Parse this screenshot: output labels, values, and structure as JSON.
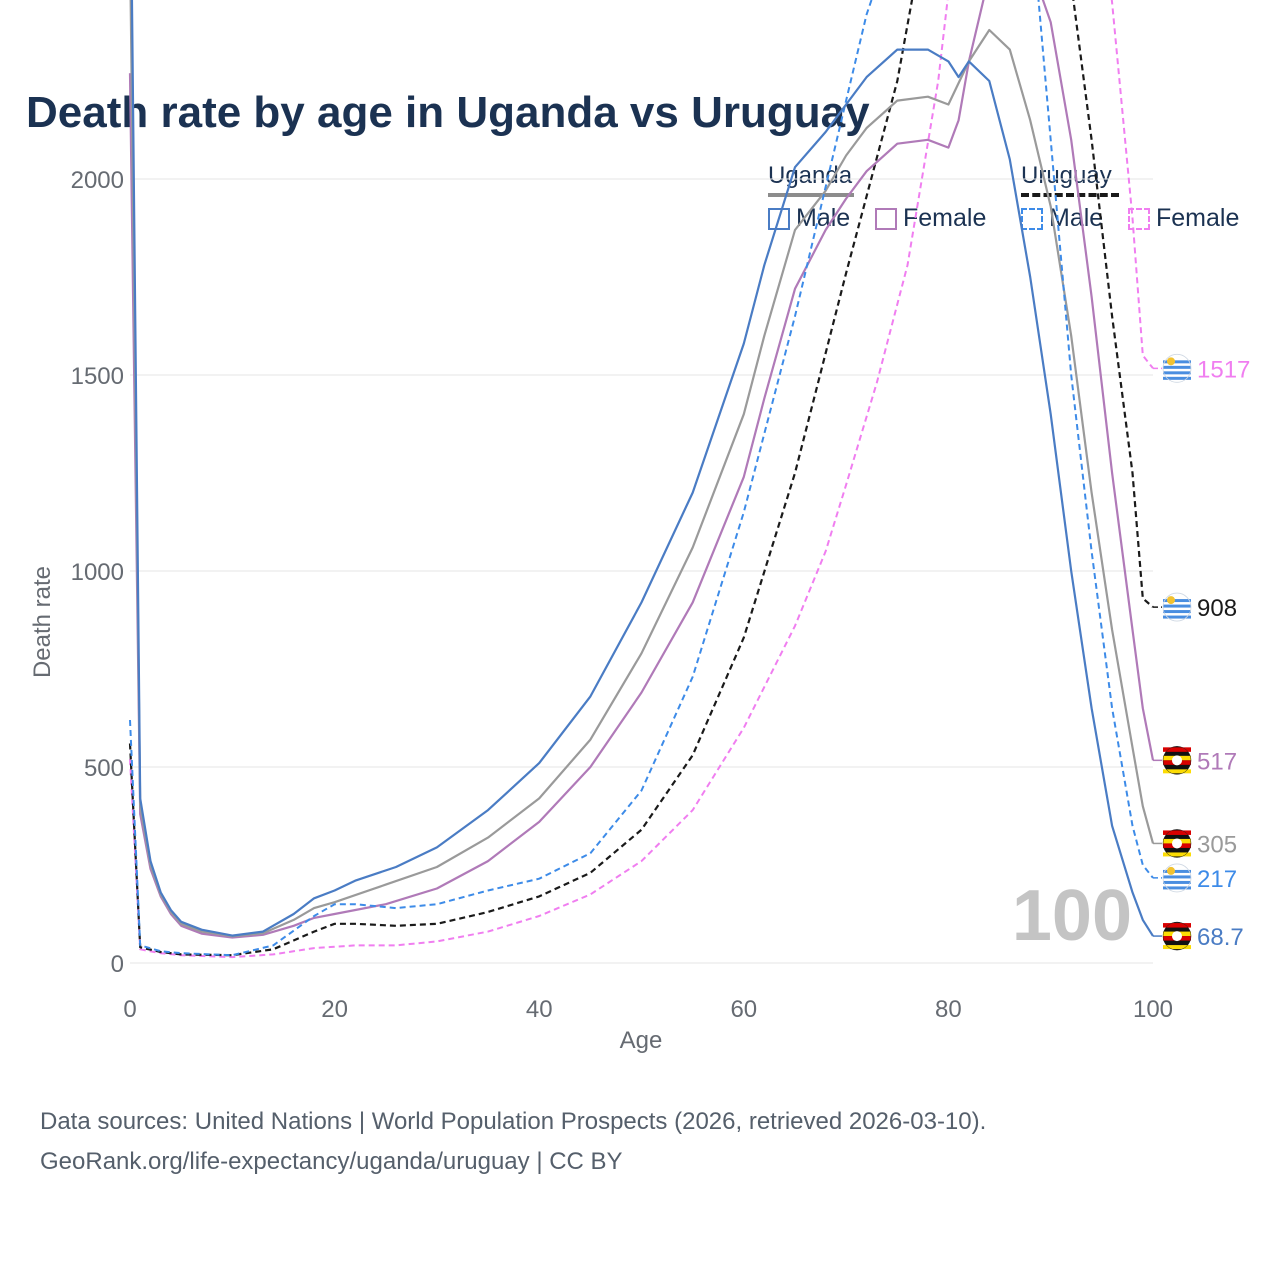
{
  "title": "Death rate by age in Uganda vs Uruguay",
  "legend": {
    "groups": [
      {
        "name": "Uganda",
        "color": "#8c8c8c",
        "dashed": false
      },
      {
        "name": "Uruguay",
        "color": "#1a1a1a",
        "dashed": true
      }
    ],
    "items": [
      {
        "label": "Male",
        "color": "#4a7cc4",
        "dashed": false
      },
      {
        "label": "Female",
        "color": "#b07ab8",
        "dashed": false
      },
      {
        "label": "Male",
        "color": "#3d8be8",
        "dashed": true
      },
      {
        "label": "Female",
        "color": "#f07ef0",
        "dashed": true
      }
    ]
  },
  "footer": {
    "line1": "Data sources: United Nations | World Population Prospects (2026, retrieved 2026-03-10).",
    "line2": "GeoRank.org/life-expectancy/uganda/uruguay | CC BY"
  },
  "watermark": "100",
  "chart_data": {
    "type": "line",
    "title": "Death rate by age in Uganda vs Uruguay",
    "xlabel": "Age",
    "ylabel": "Death rate",
    "xlim": [
      0,
      100
    ],
    "ylim": [
      0,
      3300
    ],
    "xticks": [
      0,
      20,
      40,
      60,
      80,
      100
    ],
    "yticks": [
      0,
      500,
      1000,
      1500,
      2000,
      2500,
      3000
    ],
    "series": [
      {
        "name": "Uruguay Female",
        "country": "Uruguay",
        "sex": "Female",
        "color": "#f07ef0",
        "dashed": true,
        "width": 2,
        "end_label": "1517",
        "points": [
          [
            0,
            520
          ],
          [
            1,
            35
          ],
          [
            3,
            25
          ],
          [
            5,
            20
          ],
          [
            10,
            15
          ],
          [
            14,
            22
          ],
          [
            18,
            38
          ],
          [
            22,
            45
          ],
          [
            26,
            45
          ],
          [
            30,
            55
          ],
          [
            35,
            80
          ],
          [
            40,
            120
          ],
          [
            45,
            175
          ],
          [
            50,
            260
          ],
          [
            55,
            390
          ],
          [
            60,
            600
          ],
          [
            65,
            860
          ],
          [
            68,
            1050
          ],
          [
            70,
            1220
          ],
          [
            73,
            1480
          ],
          [
            76,
            1780
          ],
          [
            79,
            2250
          ],
          [
            81,
            2700
          ],
          [
            83,
            3100
          ],
          [
            85,
            3300
          ],
          [
            87,
            3340
          ],
          [
            90,
            3330
          ],
          [
            92,
            3200
          ],
          [
            94,
            2900
          ],
          [
            96,
            2450
          ],
          [
            98,
            1900
          ],
          [
            99,
            1550
          ],
          [
            100,
            1517
          ]
        ]
      },
      {
        "name": "Uruguay Total",
        "country": "Uruguay",
        "sex": "Total",
        "color": "#1a1a1a",
        "dashed": true,
        "width": 2.2,
        "end_label": "908",
        "points": [
          [
            0,
            560
          ],
          [
            1,
            40
          ],
          [
            3,
            28
          ],
          [
            5,
            22
          ],
          [
            10,
            20
          ],
          [
            14,
            35
          ],
          [
            18,
            80
          ],
          [
            20,
            100
          ],
          [
            22,
            100
          ],
          [
            26,
            95
          ],
          [
            30,
            100
          ],
          [
            35,
            130
          ],
          [
            40,
            170
          ],
          [
            45,
            230
          ],
          [
            50,
            340
          ],
          [
            55,
            530
          ],
          [
            60,
            830
          ],
          [
            65,
            1250
          ],
          [
            70,
            1760
          ],
          [
            75,
            2250
          ],
          [
            78,
            2680
          ],
          [
            80,
            3020
          ],
          [
            82,
            3220
          ],
          [
            84,
            3260
          ],
          [
            86,
            3200
          ],
          [
            88,
            3020
          ],
          [
            90,
            2800
          ],
          [
            92,
            2500
          ],
          [
            94,
            2100
          ],
          [
            96,
            1650
          ],
          [
            98,
            1250
          ],
          [
            99,
            930
          ],
          [
            100,
            908
          ]
        ]
      },
      {
        "name": "Uganda Female",
        "country": "Uganda",
        "sex": "Female",
        "color": "#b07ab8",
        "dashed": false,
        "width": 2.2,
        "end_label": "517",
        "points": [
          [
            0,
            2270
          ],
          [
            1,
            380
          ],
          [
            2,
            240
          ],
          [
            3,
            170
          ],
          [
            4,
            125
          ],
          [
            5,
            95
          ],
          [
            7,
            75
          ],
          [
            10,
            65
          ],
          [
            13,
            72
          ],
          [
            16,
            95
          ],
          [
            18,
            115
          ],
          [
            20,
            125
          ],
          [
            25,
            150
          ],
          [
            30,
            190
          ],
          [
            35,
            260
          ],
          [
            40,
            360
          ],
          [
            45,
            500
          ],
          [
            50,
            690
          ],
          [
            55,
            920
          ],
          [
            60,
            1240
          ],
          [
            62,
            1440
          ],
          [
            65,
            1720
          ],
          [
            68,
            1870
          ],
          [
            70,
            1950
          ],
          [
            72,
            2020
          ],
          [
            75,
            2090
          ],
          [
            78,
            2100
          ],
          [
            80,
            2080
          ],
          [
            81,
            2150
          ],
          [
            82,
            2300
          ],
          [
            84,
            2520
          ],
          [
            86,
            2590
          ],
          [
            88,
            2550
          ],
          [
            90,
            2400
          ],
          [
            92,
            2100
          ],
          [
            94,
            1700
          ],
          [
            96,
            1250
          ],
          [
            98,
            850
          ],
          [
            99,
            650
          ],
          [
            100,
            517
          ]
        ]
      },
      {
        "name": "Uganda Total",
        "country": "Uganda",
        "sex": "Total",
        "color": "#9a9a9a",
        "dashed": false,
        "width": 2.2,
        "end_label": "305",
        "points": [
          [
            0,
            2600
          ],
          [
            1,
            400
          ],
          [
            2,
            250
          ],
          [
            3,
            175
          ],
          [
            4,
            130
          ],
          [
            5,
            100
          ],
          [
            7,
            80
          ],
          [
            10,
            68
          ],
          [
            13,
            76
          ],
          [
            16,
            110
          ],
          [
            18,
            140
          ],
          [
            20,
            155
          ],
          [
            25,
            200
          ],
          [
            30,
            245
          ],
          [
            35,
            320
          ],
          [
            40,
            420
          ],
          [
            45,
            570
          ],
          [
            50,
            790
          ],
          [
            55,
            1060
          ],
          [
            60,
            1400
          ],
          [
            62,
            1600
          ],
          [
            65,
            1870
          ],
          [
            68,
            1970
          ],
          [
            70,
            2060
          ],
          [
            72,
            2130
          ],
          [
            75,
            2200
          ],
          [
            78,
            2210
          ],
          [
            80,
            2190
          ],
          [
            82,
            2300
          ],
          [
            84,
            2380
          ],
          [
            86,
            2330
          ],
          [
            88,
            2150
          ],
          [
            90,
            1930
          ],
          [
            92,
            1600
          ],
          [
            94,
            1200
          ],
          [
            96,
            850
          ],
          [
            98,
            550
          ],
          [
            99,
            400
          ],
          [
            100,
            305
          ]
        ]
      },
      {
        "name": "Uruguay Male",
        "country": "Uruguay",
        "sex": "Male",
        "color": "#3d8be8",
        "dashed": true,
        "width": 2,
        "end_label": "217",
        "points": [
          [
            0,
            620
          ],
          [
            1,
            45
          ],
          [
            3,
            30
          ],
          [
            5,
            25
          ],
          [
            10,
            20
          ],
          [
            14,
            45
          ],
          [
            18,
            120
          ],
          [
            20,
            150
          ],
          [
            22,
            150
          ],
          [
            26,
            140
          ],
          [
            30,
            150
          ],
          [
            35,
            185
          ],
          [
            40,
            215
          ],
          [
            45,
            280
          ],
          [
            50,
            440
          ],
          [
            55,
            730
          ],
          [
            60,
            1150
          ],
          [
            65,
            1650
          ],
          [
            70,
            2200
          ],
          [
            72,
            2420
          ],
          [
            75,
            2650
          ],
          [
            78,
            2900
          ],
          [
            80,
            3100
          ],
          [
            82,
            3270
          ],
          [
            83,
            3300
          ],
          [
            84,
            3270
          ],
          [
            86,
            3100
          ],
          [
            88,
            2700
          ],
          [
            90,
            2100
          ],
          [
            92,
            1500
          ],
          [
            94,
            1050
          ],
          [
            96,
            650
          ],
          [
            98,
            350
          ],
          [
            99,
            250
          ],
          [
            100,
            217
          ]
        ]
      },
      {
        "name": "Uganda Male",
        "country": "Uganda",
        "sex": "Male",
        "color": "#4a7cc4",
        "dashed": false,
        "width": 2.2,
        "end_label": "68.7",
        "points": [
          [
            0,
            2940
          ],
          [
            1,
            420
          ],
          [
            2,
            260
          ],
          [
            3,
            180
          ],
          [
            4,
            135
          ],
          [
            5,
            105
          ],
          [
            7,
            85
          ],
          [
            10,
            70
          ],
          [
            13,
            80
          ],
          [
            16,
            125
          ],
          [
            18,
            165
          ],
          [
            20,
            185
          ],
          [
            22,
            210
          ],
          [
            26,
            245
          ],
          [
            30,
            295
          ],
          [
            35,
            390
          ],
          [
            40,
            510
          ],
          [
            45,
            680
          ],
          [
            50,
            920
          ],
          [
            55,
            1200
          ],
          [
            60,
            1580
          ],
          [
            62,
            1780
          ],
          [
            65,
            2030
          ],
          [
            68,
            2120
          ],
          [
            70,
            2190
          ],
          [
            72,
            2260
          ],
          [
            75,
            2330
          ],
          [
            78,
            2330
          ],
          [
            80,
            2300
          ],
          [
            81,
            2260
          ],
          [
            82,
            2300
          ],
          [
            84,
            2250
          ],
          [
            86,
            2050
          ],
          [
            88,
            1750
          ],
          [
            90,
            1400
          ],
          [
            92,
            1000
          ],
          [
            94,
            650
          ],
          [
            96,
            350
          ],
          [
            98,
            180
          ],
          [
            99,
            110
          ],
          [
            100,
            68.7
          ]
        ]
      }
    ]
  }
}
